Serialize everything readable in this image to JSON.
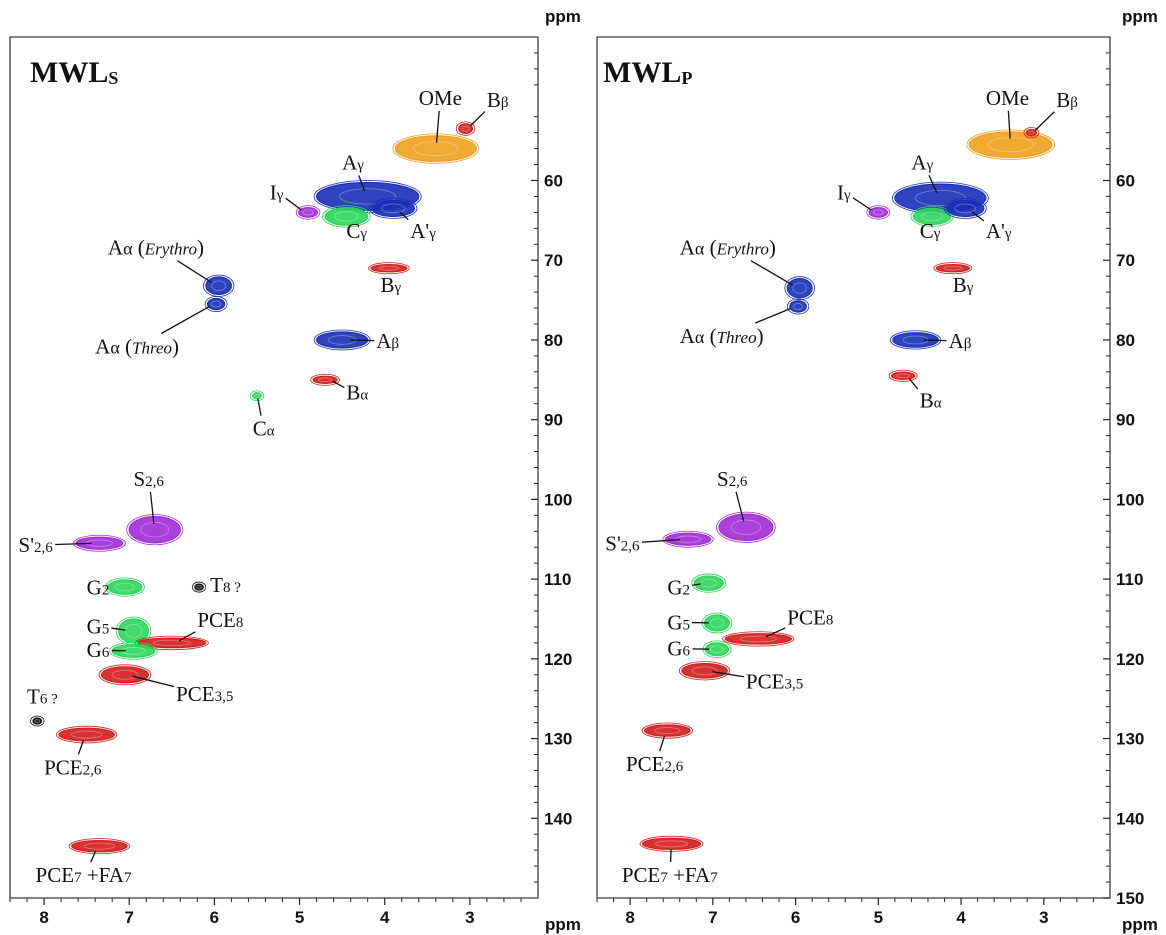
{
  "colors": {
    "blue": "#1a2fb8",
    "green": "#2bd65a",
    "red": "#d41d1d",
    "purple": "#a12bd6",
    "orange": "#f0a21e",
    "black": "#111111"
  },
  "chart_data": [
    {
      "type": "scatter",
      "subtype": "2D HSQC NMR contour plot",
      "title": "MWLs",
      "title_main": "MWL",
      "title_sub": "S",
      "xlabel": "ppm",
      "ylabel": "ppm",
      "xlim": [
        8.4,
        2.2
      ],
      "ylim": [
        150,
        42
      ],
      "x_ticks": [
        8,
        7,
        6,
        5,
        4,
        3
      ],
      "y_ticks": [
        60,
        70,
        80,
        90,
        100,
        110,
        120,
        130,
        140
      ],
      "grid": false,
      "peaks": [
        {
          "name": "OMe",
          "x": 3.4,
          "y": 56.0,
          "w": 0.95,
          "h": 3.2,
          "color": "orange",
          "label_parts": [
            [
              "OMe",
              ""
            ]
          ],
          "lx": 3.6,
          "ly": 50.5
        },
        {
          "name": "Bβ",
          "x": 3.05,
          "y": 53.5,
          "w": 0.16,
          "h": 1.2,
          "color": "red",
          "label_parts": [
            [
              "B",
              ""
            ],
            [
              "β",
              "sub"
            ]
          ],
          "lx": 2.8,
          "ly": 50.8
        },
        {
          "name": "Aγ",
          "x": 4.2,
          "y": 62.0,
          "w": 1.2,
          "h": 3.5,
          "color": "blue",
          "label_parts": [
            [
              "A",
              ""
            ],
            [
              "γ",
              "sub"
            ]
          ],
          "lx": 4.5,
          "ly": 58.6
        },
        {
          "name": "Iγ",
          "x": 4.9,
          "y": 64.0,
          "w": 0.22,
          "h": 1.2,
          "color": "purple",
          "label_parts": [
            [
              "I",
              ""
            ],
            [
              "γ",
              "sub"
            ]
          ],
          "lx": 5.35,
          "ly": 62.4
        },
        {
          "name": "Cγ",
          "x": 4.45,
          "y": 64.5,
          "w": 0.5,
          "h": 2.2,
          "color": "green",
          "label_parts": [
            [
              "C",
              ""
            ],
            [
              "γ",
              "sub"
            ]
          ],
          "lx": 4.45,
          "ly": 67.2
        },
        {
          "name": "A'γ",
          "x": 3.9,
          "y": 63.5,
          "w": 0.5,
          "h": 2.0,
          "color": "blue",
          "label_parts": [
            [
              "A'",
              ""
            ],
            [
              "γ",
              "sub"
            ]
          ],
          "lx": 3.7,
          "ly": 67.2
        },
        {
          "name": "Aα (Erythro)",
          "x": 5.95,
          "y": 73.2,
          "w": 0.3,
          "h": 2.2,
          "color": "blue",
          "label_parts": [
            [
              "A",
              ""
            ],
            [
              "α",
              "reg"
            ],
            [
              " (",
              ""
            ],
            [
              "Erythro",
              "it"
            ],
            [
              ")",
              ""
            ]
          ],
          "lx": 7.25,
          "ly": 69.3
        },
        {
          "name": "Aα (Threo)",
          "x": 5.98,
          "y": 75.5,
          "w": 0.2,
          "h": 1.4,
          "color": "blue",
          "label_parts": [
            [
              "A",
              ""
            ],
            [
              "α",
              "reg"
            ],
            [
              " (",
              ""
            ],
            [
              "Threo",
              "it"
            ],
            [
              ")",
              ""
            ]
          ],
          "lx": 7.4,
          "ly": 81.7
        },
        {
          "name": "Bγ",
          "x": 3.95,
          "y": 71.0,
          "w": 0.42,
          "h": 0.9,
          "color": "red",
          "label_parts": [
            [
              "B",
              ""
            ],
            [
              "γ",
              "sub"
            ]
          ],
          "lx": 4.05,
          "ly": 74.0
        },
        {
          "name": "Aβ",
          "x": 4.5,
          "y": 80.0,
          "w": 0.6,
          "h": 2.0,
          "color": "blue",
          "label_parts": [
            [
              "A",
              ""
            ],
            [
              "β",
              "sub"
            ]
          ],
          "lx": 4.1,
          "ly": 81.0
        },
        {
          "name": "Bα",
          "x": 4.7,
          "y": 85.0,
          "w": 0.28,
          "h": 0.9,
          "color": "red",
          "label_parts": [
            [
              "B",
              ""
            ],
            [
              "α",
              "sub"
            ]
          ],
          "lx": 4.45,
          "ly": 87.5
        },
        {
          "name": "Cα",
          "x": 5.5,
          "y": 87.0,
          "w": 0.1,
          "h": 0.6,
          "color": "green",
          "label_parts": [
            [
              "C",
              ""
            ],
            [
              "α",
              "sub"
            ]
          ],
          "lx": 5.55,
          "ly": 92.0
        },
        {
          "name": "S2,6",
          "x": 6.7,
          "y": 103.8,
          "w": 0.6,
          "h": 3.3,
          "color": "purple",
          "label_parts": [
            [
              "S",
              ""
            ],
            [
              "2,6",
              "sub"
            ]
          ],
          "lx": 6.95,
          "ly": 98.3
        },
        {
          "name": "S'2,6",
          "x": 7.35,
          "y": 105.5,
          "w": 0.55,
          "h": 1.5,
          "color": "purple",
          "label_parts": [
            [
              "S'",
              ""
            ],
            [
              "2,6",
              "sub"
            ]
          ],
          "lx": 8.3,
          "ly": 106.6
        },
        {
          "name": "G2",
          "x": 7.05,
          "y": 111.0,
          "w": 0.4,
          "h": 1.8,
          "color": "green",
          "label_parts": [
            [
              "G",
              ""
            ],
            [
              "2",
              "sub"
            ]
          ],
          "lx": 7.5,
          "ly": 111.9
        },
        {
          "name": "T8 ?",
          "x": 6.18,
          "y": 111.0,
          "w": 0.1,
          "h": 0.6,
          "color": "black",
          "label_parts": [
            [
              "T",
              ""
            ],
            [
              "8 ?",
              "sub"
            ]
          ],
          "lx": 6.05,
          "ly": 111.6
        },
        {
          "name": "G5",
          "x": 6.95,
          "y": 116.5,
          "w": 0.35,
          "h": 3.0,
          "color": "green",
          "label_parts": [
            [
              "G",
              ""
            ],
            [
              "5",
              "sub"
            ]
          ],
          "lx": 7.5,
          "ly": 116.8
        },
        {
          "name": "PCE8",
          "x": 6.5,
          "y": 118.0,
          "w": 0.8,
          "h": 1.2,
          "color": "red",
          "label_parts": [
            [
              "PCE",
              ""
            ],
            [
              "8",
              "sub"
            ]
          ],
          "lx": 6.2,
          "ly": 116.0
        },
        {
          "name": "G6",
          "x": 6.95,
          "y": 119.0,
          "w": 0.5,
          "h": 1.6,
          "color": "green",
          "label_parts": [
            [
              "G",
              ""
            ],
            [
              "6",
              "sub"
            ]
          ],
          "lx": 7.5,
          "ly": 119.8
        },
        {
          "name": "PCE3,5",
          "x": 7.05,
          "y": 122.0,
          "w": 0.55,
          "h": 2.0,
          "color": "red",
          "label_parts": [
            [
              "PCE",
              ""
            ],
            [
              "3,5",
              "sub"
            ]
          ],
          "lx": 6.45,
          "ly": 125.3
        },
        {
          "name": "T6 ?",
          "x": 8.08,
          "y": 127.8,
          "w": 0.1,
          "h": 0.7,
          "color": "black",
          "label_parts": [
            [
              "T",
              ""
            ],
            [
              "6 ?",
              "sub"
            ]
          ],
          "lx": 8.2,
          "ly": 125.6
        },
        {
          "name": "PCE2,6",
          "x": 7.5,
          "y": 129.5,
          "w": 0.65,
          "h": 1.6,
          "color": "red",
          "label_parts": [
            [
              "PCE",
              ""
            ],
            [
              "2,6",
              "sub"
            ]
          ],
          "lx": 8.0,
          "ly": 134.5
        },
        {
          "name": "PCE7 +FA7",
          "x": 7.35,
          "y": 143.5,
          "w": 0.65,
          "h": 1.4,
          "color": "red",
          "label_parts": [
            [
              "PCE",
              ""
            ],
            [
              "7",
              "sub"
            ],
            [
              " +FA",
              ""
            ],
            [
              "7",
              "sub"
            ]
          ],
          "lx": 8.1,
          "ly": 148.0
        }
      ]
    },
    {
      "type": "scatter",
      "subtype": "2D HSQC NMR contour plot",
      "title": "MWLP",
      "title_main": "MWL",
      "title_sub": "P",
      "xlabel": "ppm",
      "ylabel": "ppm",
      "xlim": [
        8.4,
        2.2
      ],
      "ylim": [
        150,
        42
      ],
      "x_ticks": [
        8,
        7,
        6,
        5,
        4,
        3
      ],
      "y_ticks": [
        60,
        70,
        80,
        90,
        100,
        110,
        120,
        130,
        140,
        150
      ],
      "grid": false,
      "peaks": [
        {
          "name": "OMe",
          "x": 3.4,
          "y": 55.5,
          "w": 1.0,
          "h": 3.2,
          "color": "orange",
          "label_parts": [
            [
              "OMe",
              ""
            ]
          ],
          "lx": 3.7,
          "ly": 50.5
        },
        {
          "name": "Bβ",
          "x": 3.15,
          "y": 54.0,
          "w": 0.12,
          "h": 0.8,
          "color": "red",
          "label_parts": [
            [
              "B",
              ""
            ],
            [
              "β",
              "sub"
            ]
          ],
          "lx": 2.85,
          "ly": 50.8
        },
        {
          "name": "Aγ",
          "x": 4.25,
          "y": 62.2,
          "w": 1.1,
          "h": 3.5,
          "color": "blue",
          "label_parts": [
            [
              "A",
              ""
            ],
            [
              "γ",
              "sub"
            ]
          ],
          "lx": 4.6,
          "ly": 58.6
        },
        {
          "name": "Iγ",
          "x": 5.0,
          "y": 64.0,
          "w": 0.22,
          "h": 1.2,
          "color": "purple",
          "label_parts": [
            [
              "I",
              ""
            ],
            [
              "γ",
              "sub"
            ]
          ],
          "lx": 5.5,
          "ly": 62.4
        },
        {
          "name": "Cγ",
          "x": 4.35,
          "y": 64.5,
          "w": 0.45,
          "h": 2.0,
          "color": "green",
          "label_parts": [
            [
              "C",
              ""
            ],
            [
              "γ",
              "sub"
            ]
          ],
          "lx": 4.5,
          "ly": 67.2
        },
        {
          "name": "A'γ",
          "x": 3.95,
          "y": 63.5,
          "w": 0.45,
          "h": 2.0,
          "color": "blue",
          "label_parts": [
            [
              "A'",
              ""
            ],
            [
              "γ",
              "sub"
            ]
          ],
          "lx": 3.7,
          "ly": 67.2
        },
        {
          "name": "Aα (Erythro)",
          "x": 5.95,
          "y": 73.5,
          "w": 0.3,
          "h": 2.4,
          "color": "blue",
          "label_parts": [
            [
              "A",
              ""
            ],
            [
              "α",
              "reg"
            ],
            [
              " (",
              ""
            ],
            [
              "Erythro",
              "it"
            ],
            [
              ")",
              ""
            ]
          ],
          "lx": 7.4,
          "ly": 69.3
        },
        {
          "name": "Aα (Threo)",
          "x": 5.97,
          "y": 75.8,
          "w": 0.2,
          "h": 1.4,
          "color": "blue",
          "label_parts": [
            [
              "A",
              ""
            ],
            [
              "α",
              "reg"
            ],
            [
              " (",
              ""
            ],
            [
              "Threo",
              "it"
            ],
            [
              ")",
              ""
            ]
          ],
          "lx": 7.4,
          "ly": 80.4
        },
        {
          "name": "Bγ",
          "x": 4.1,
          "y": 71.0,
          "w": 0.4,
          "h": 0.9,
          "color": "red",
          "label_parts": [
            [
              "B",
              ""
            ],
            [
              "γ",
              "sub"
            ]
          ],
          "lx": 4.1,
          "ly": 74.0
        },
        {
          "name": "Aβ",
          "x": 4.55,
          "y": 80.0,
          "w": 0.55,
          "h": 1.8,
          "color": "blue",
          "label_parts": [
            [
              "A",
              ""
            ],
            [
              "β",
              "sub"
            ]
          ],
          "lx": 4.15,
          "ly": 81.0
        },
        {
          "name": "Bα",
          "x": 4.7,
          "y": 84.5,
          "w": 0.28,
          "h": 0.9,
          "color": "red",
          "label_parts": [
            [
              "B",
              ""
            ],
            [
              "α",
              "sub"
            ]
          ],
          "lx": 4.5,
          "ly": 88.5
        },
        {
          "name": "S2,6",
          "x": 6.6,
          "y": 103.5,
          "w": 0.65,
          "h": 3.3,
          "color": "purple",
          "label_parts": [
            [
              "S",
              ""
            ],
            [
              "2,6",
              "sub"
            ]
          ],
          "lx": 6.95,
          "ly": 98.3
        },
        {
          "name": "S'2,6",
          "x": 7.3,
          "y": 105.0,
          "w": 0.55,
          "h": 1.5,
          "color": "purple",
          "label_parts": [
            [
              "S'",
              ""
            ],
            [
              "2,6",
              "sub"
            ]
          ],
          "lx": 8.3,
          "ly": 106.4
        },
        {
          "name": "G2",
          "x": 7.05,
          "y": 110.5,
          "w": 0.35,
          "h": 1.8,
          "color": "green",
          "label_parts": [
            [
              "G",
              ""
            ],
            [
              "2",
              "sub"
            ]
          ],
          "lx": 7.55,
          "ly": 111.9
        },
        {
          "name": "G5",
          "x": 6.95,
          "y": 115.5,
          "w": 0.3,
          "h": 2.0,
          "color": "green",
          "label_parts": [
            [
              "G",
              ""
            ],
            [
              "5",
              "sub"
            ]
          ],
          "lx": 7.55,
          "ly": 116.3
        },
        {
          "name": "PCE8",
          "x": 6.45,
          "y": 117.5,
          "w": 0.8,
          "h": 1.3,
          "color": "red",
          "label_parts": [
            [
              "PCE",
              ""
            ],
            [
              "8",
              "sub"
            ]
          ],
          "lx": 6.1,
          "ly": 115.7
        },
        {
          "name": "G6",
          "x": 6.95,
          "y": 118.8,
          "w": 0.28,
          "h": 1.6,
          "color": "green",
          "label_parts": [
            [
              "G",
              ""
            ],
            [
              "6",
              "sub"
            ]
          ],
          "lx": 7.55,
          "ly": 119.6
        },
        {
          "name": "PCE3,5",
          "x": 7.1,
          "y": 121.5,
          "w": 0.55,
          "h": 1.8,
          "color": "red",
          "label_parts": [
            [
              "PCE",
              ""
            ],
            [
              "3,5",
              "sub"
            ]
          ],
          "lx": 6.6,
          "ly": 123.7
        },
        {
          "name": "PCE2,6",
          "x": 7.55,
          "y": 129.0,
          "w": 0.55,
          "h": 1.4,
          "color": "red",
          "label_parts": [
            [
              "PCE",
              ""
            ],
            [
              "2,6",
              "sub"
            ]
          ],
          "lx": 8.05,
          "ly": 134.1
        },
        {
          "name": "PCE7 +FA7",
          "x": 7.5,
          "y": 143.2,
          "w": 0.7,
          "h": 1.4,
          "color": "red",
          "label_parts": [
            [
              "PCE",
              ""
            ],
            [
              "7",
              "sub"
            ],
            [
              " +FA",
              ""
            ],
            [
              "7",
              "sub"
            ]
          ],
          "lx": 8.1,
          "ly": 148.0
        }
      ]
    }
  ]
}
